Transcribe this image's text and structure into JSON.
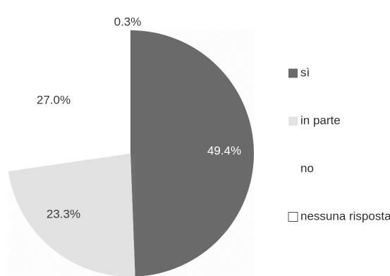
{
  "chart_data": {
    "type": "pie",
    "title": "",
    "slices": [
      {
        "label": "sì",
        "value": 49.4,
        "display": "49.4%",
        "color": "#6b6b6b"
      },
      {
        "label": "in parte",
        "value": 23.3,
        "display": "23.3%",
        "color": "#e3e3e3"
      },
      {
        "label": "no",
        "value": 27.0,
        "display": "27.0%",
        "color": "#ffffff"
      },
      {
        "label": "nessuna risposta",
        "value": 0.3,
        "display": "0.3%",
        "color": "#ffffff"
      }
    ],
    "legend": {
      "placement": "right",
      "items": [
        {
          "label": "sì",
          "swatch": "#6b6b6b",
          "outlined": false
        },
        {
          "label": "in parte",
          "swatch": "#e3e3e3",
          "outlined": false
        },
        {
          "label": "no",
          "swatch": "#ffffff",
          "outlined": false
        },
        {
          "label": "nessuna risposta",
          "swatch": "#ffffff",
          "outlined": true
        }
      ]
    }
  }
}
